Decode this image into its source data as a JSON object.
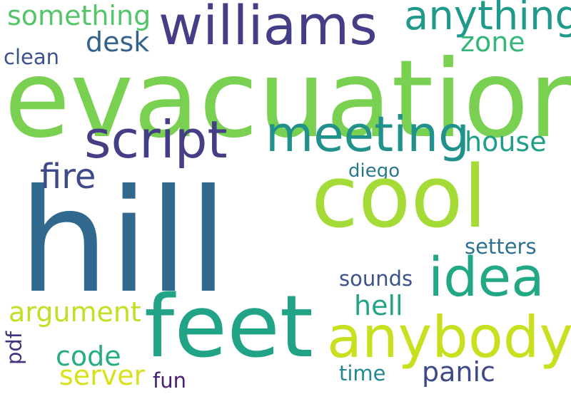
{
  "words": {
    "evacuation": {
      "text": "evacuation",
      "color": "#7ad151"
    },
    "hill": {
      "text": "hill",
      "color": "#31688e"
    },
    "williams": {
      "text": "williams",
      "color": "#433e85"
    },
    "anything": {
      "text": "anything",
      "color": "#1f9a8a"
    },
    "something": {
      "text": "something",
      "color": "#54c568"
    },
    "desk": {
      "text": "desk",
      "color": "#33638d"
    },
    "zone": {
      "text": "zone",
      "color": "#35b779"
    },
    "clean": {
      "text": "clean",
      "color": "#3b528b"
    },
    "script": {
      "text": "script",
      "color": "#433e85"
    },
    "meeting": {
      "text": "meeting",
      "color": "#21918c"
    },
    "house": {
      "text": "house",
      "color": "#1f9f88"
    },
    "fire": {
      "text": "fire",
      "color": "#3e4989"
    },
    "diego": {
      "text": "diego",
      "color": "#2a788e"
    },
    "cool": {
      "text": "cool",
      "color": "#a5db36"
    },
    "setters": {
      "text": "setters",
      "color": "#2c728e"
    },
    "idea": {
      "text": "idea",
      "color": "#22a884"
    },
    "sounds": {
      "text": "sounds",
      "color": "#3b528b"
    },
    "hell": {
      "text": "hell",
      "color": "#20a386"
    },
    "argument": {
      "text": "argument",
      "color": "#c2df23"
    },
    "feet": {
      "text": "feet",
      "color": "#20a386"
    },
    "anybody": {
      "text": "anybody",
      "color": "#c8e020"
    },
    "code": {
      "text": "code",
      "color": "#26ad81"
    },
    "panic": {
      "text": "panic",
      "color": "#3e4989"
    },
    "server": {
      "text": "server",
      "color": "#d8e219"
    },
    "time": {
      "text": "time",
      "color": "#23898e"
    },
    "fun": {
      "text": "fun",
      "color": "#482173"
    },
    "pdf": {
      "text": "pdf",
      "color": "#46337e"
    }
  }
}
